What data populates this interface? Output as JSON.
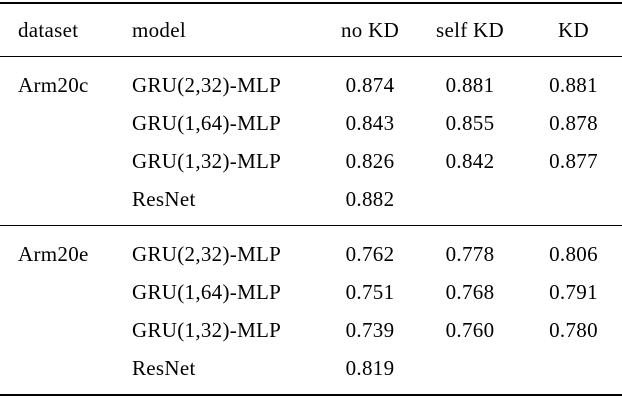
{
  "page": {
    "background": "#ffffff",
    "text_color": "#000000",
    "rule_color": "#000000"
  },
  "table": {
    "columns": [
      "dataset",
      "model",
      "no KD",
      "self KD",
      "KD"
    ],
    "sections": [
      {
        "dataset": "Arm20c",
        "rows": [
          {
            "model": "GRU(2,32)-MLP",
            "values": [
              "0.874",
              "0.881",
              "0.881"
            ]
          },
          {
            "model": "GRU(1,64)-MLP",
            "values": [
              "0.843",
              "0.855",
              "0.878"
            ]
          },
          {
            "model": "GRU(1,32)-MLP",
            "values": [
              "0.826",
              "0.842",
              "0.877"
            ]
          },
          {
            "model": "ResNet",
            "values": [
              "0.882",
              "",
              ""
            ]
          }
        ]
      },
      {
        "dataset": "Arm20e",
        "rows": [
          {
            "model": "GRU(2,32)-MLP",
            "values": [
              "0.762",
              "0.778",
              "0.806"
            ]
          },
          {
            "model": "GRU(1,64)-MLP",
            "values": [
              "0.751",
              "0.768",
              "0.791"
            ]
          },
          {
            "model": "GRU(1,32)-MLP",
            "values": [
              "0.739",
              "0.760",
              "0.780"
            ]
          },
          {
            "model": "ResNet",
            "values": [
              "0.819",
              "",
              ""
            ]
          }
        ]
      }
    ]
  }
}
